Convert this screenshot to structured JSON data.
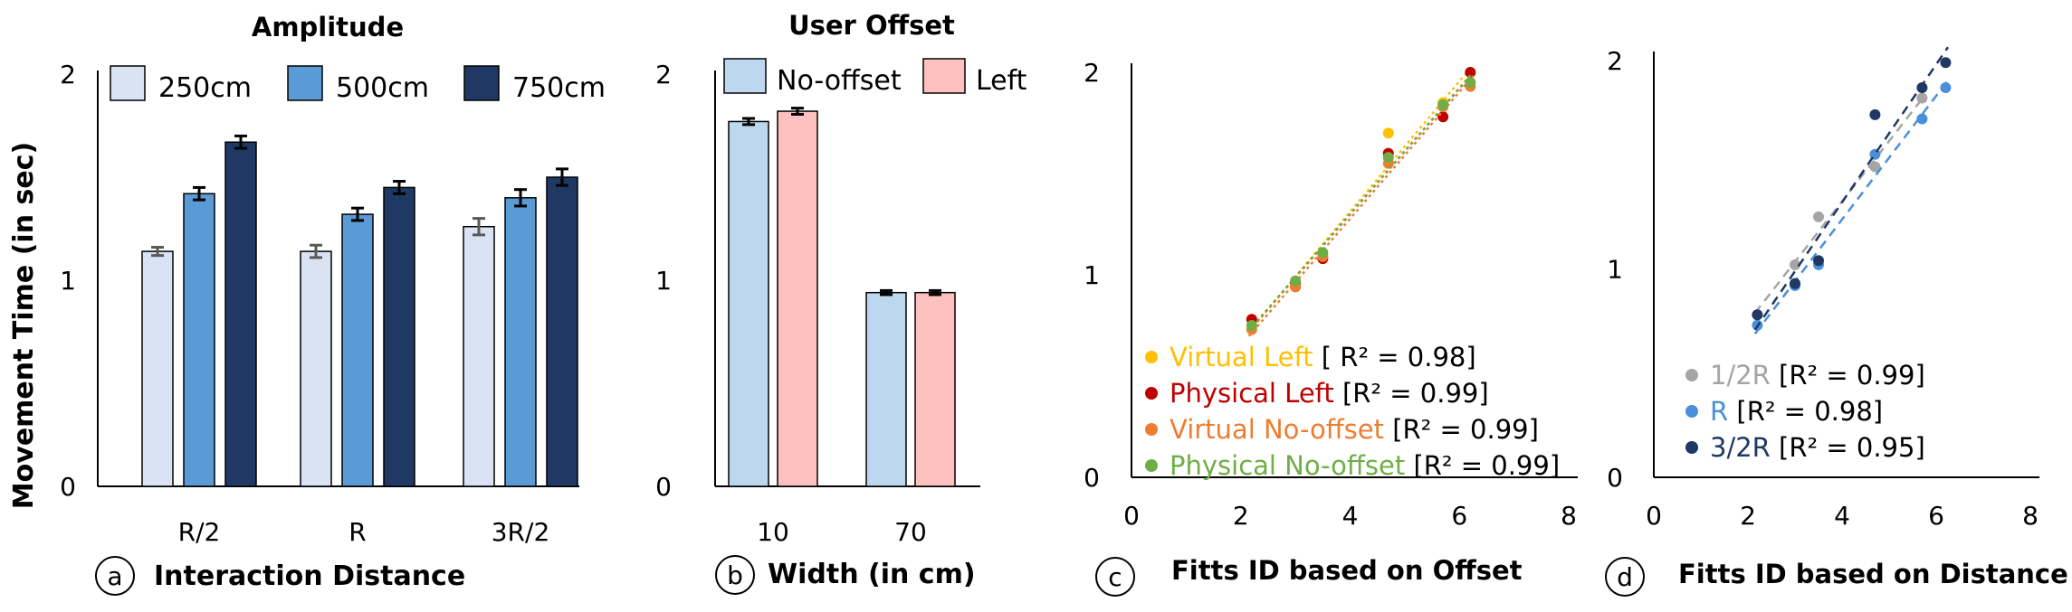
{
  "y_axis_label": "Movement Time (in sec)",
  "chart_data": [
    {
      "type": "bar",
      "panel": "a",
      "title": "Amplitude",
      "xlabel": "Interaction Distance",
      "ylabel": "Movement Time (in sec)",
      "categories": [
        "R/2",
        "R",
        "3R/2"
      ],
      "ylim": [
        0,
        2
      ],
      "yticks": [
        "0",
        "1",
        "2"
      ],
      "legend": "top",
      "series": [
        {
          "name": "250cm",
          "color": "#dae3f3",
          "values": [
            1.14,
            1.14,
            1.26
          ],
          "errors": [
            0.02,
            0.03,
            0.04
          ]
        },
        {
          "name": "500cm",
          "color": "#5b9bd5",
          "values": [
            1.42,
            1.32,
            1.4
          ],
          "errors": [
            0.03,
            0.03,
            0.04
          ]
        },
        {
          "name": "750cm",
          "color": "#203864",
          "values": [
            1.67,
            1.45,
            1.5
          ],
          "errors": [
            0.03,
            0.03,
            0.04
          ]
        }
      ]
    },
    {
      "type": "bar",
      "panel": "b",
      "title": "User Offset",
      "xlabel": "Width (in cm)",
      "categories": [
        "10",
        "70"
      ],
      "ylim": [
        0,
        2
      ],
      "yticks": [
        "0",
        "1",
        "2"
      ],
      "legend": "top",
      "series": [
        {
          "name": "No-offset",
          "color": "#bdd7ee",
          "values": [
            1.77,
            0.94
          ],
          "errors": [
            0.015,
            0.01
          ]
        },
        {
          "name": "Left",
          "color": "#ffc0c0",
          "values": [
            1.82,
            0.94
          ],
          "errors": [
            0.015,
            0.01
          ]
        }
      ]
    },
    {
      "type": "scatter",
      "panel": "c",
      "xlabel": "Fitts ID based on Offset",
      "xlim": [
        0,
        8
      ],
      "ylim": [
        0,
        2
      ],
      "xticks": [
        "0",
        "2",
        "4",
        "6",
        "8"
      ],
      "yticks": [
        "0",
        "1",
        "2"
      ],
      "legend": "bottom-left",
      "series": [
        {
          "name": "Virtual Left",
          "r2": "[ R² = 0.98]",
          "color": "#ffc000",
          "x": [
            2.2,
            3.0,
            3.5,
            4.7,
            5.7,
            6.2
          ],
          "y": [
            0.74,
            0.95,
            1.1,
            1.7,
            1.85,
            1.95
          ]
        },
        {
          "name": "Physical Left",
          "r2": "[R² = 0.99]",
          "color": "#c00000",
          "x": [
            2.2,
            3.0,
            3.5,
            4.7,
            5.7,
            6.2
          ],
          "y": [
            0.78,
            0.96,
            1.08,
            1.6,
            1.78,
            2.0
          ]
        },
        {
          "name": "Virtual No-offset",
          "r2": "[R² = 0.99]",
          "color": "#ed7d31",
          "x": [
            2.2,
            3.0,
            3.5,
            4.7,
            5.7,
            6.2
          ],
          "y": [
            0.73,
            0.94,
            1.09,
            1.55,
            1.83,
            1.93
          ]
        },
        {
          "name": "Physical No-offset",
          "r2": "[R² = 0.99]",
          "color": "#70ad47",
          "x": [
            2.2,
            3.0,
            3.5,
            4.7,
            5.7,
            6.2
          ],
          "y": [
            0.75,
            0.97,
            1.11,
            1.58,
            1.84,
            1.95
          ]
        }
      ]
    },
    {
      "type": "scatter",
      "panel": "d",
      "xlabel": "Fitts ID based on Distance",
      "xlim": [
        0,
        8
      ],
      "ylim": [
        0,
        2
      ],
      "xticks": [
        "0",
        "2",
        "4",
        "6",
        "8"
      ],
      "yticks": [
        "0",
        "1",
        "2"
      ],
      "legend": "bottom-left",
      "series": [
        {
          "name": "1/2R",
          "r2": "[R² = 0.99]",
          "color": "#a5a5a5",
          "x": [
            2.2,
            3.0,
            3.5,
            4.7,
            5.7
          ],
          "y": [
            0.78,
            1.02,
            1.25,
            1.49,
            1.82
          ]
        },
        {
          "name": "R",
          "r2": "[R² = 0.98]",
          "color": "#4a90d9",
          "x": [
            2.2,
            3.0,
            3.5,
            4.7,
            5.7,
            6.2
          ],
          "y": [
            0.73,
            0.92,
            1.02,
            1.55,
            1.72,
            1.87
          ]
        },
        {
          "name": "3/2R",
          "r2": "[R² = 0.95]",
          "color": "#1f3864",
          "x": [
            2.2,
            3.0,
            3.5,
            4.7,
            5.7,
            6.2
          ],
          "y": [
            0.78,
            0.93,
            1.04,
            1.74,
            1.87,
            1.99
          ]
        }
      ]
    }
  ]
}
